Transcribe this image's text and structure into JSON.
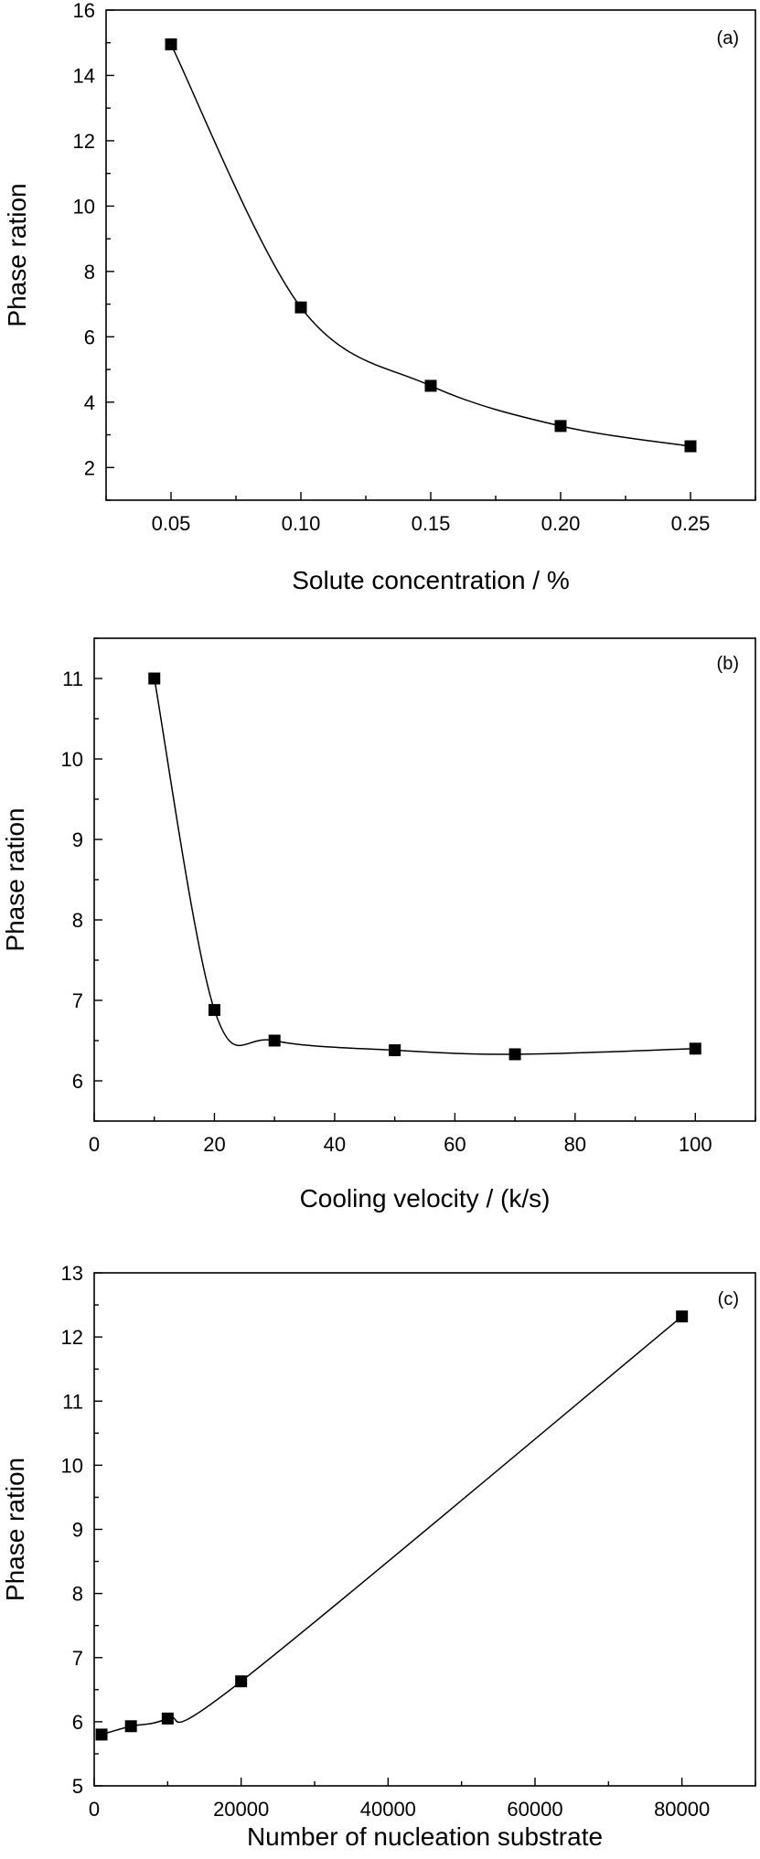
{
  "chart_data": [
    {
      "type": "line",
      "panel_label": "(a)",
      "xlabel": "Solute concentration / %",
      "ylabel": "Phase ration",
      "xlim": [
        0.025,
        0.275
      ],
      "ylim": [
        1,
        16
      ],
      "xticks": [
        "0.05",
        "0.10",
        "0.15",
        "0.20",
        "0.25"
      ],
      "yticks": [
        "2",
        "4",
        "6",
        "8",
        "10",
        "12",
        "14",
        "16"
      ],
      "series": [
        {
          "x": [
            0.05,
            0.1,
            0.15,
            0.2,
            0.25
          ],
          "y": [
            14.95,
            6.9,
            4.5,
            3.27,
            2.65
          ]
        }
      ],
      "marker": "square",
      "grid": false
    },
    {
      "type": "line",
      "panel_label": "(b)",
      "xlabel": "Cooling velocity / (k/s)",
      "ylabel": "Phase ration",
      "xlim": [
        0,
        110
      ],
      "ylim": [
        5.5,
        11.5
      ],
      "xticks": [
        "0",
        "20",
        "40",
        "60",
        "80",
        "100"
      ],
      "yticks": [
        "6",
        "7",
        "8",
        "9",
        "10",
        "11"
      ],
      "series": [
        {
          "x": [
            10,
            20,
            30,
            50,
            70,
            100
          ],
          "y": [
            11.0,
            6.88,
            6.5,
            6.38,
            6.33,
            6.4
          ]
        }
      ],
      "marker": "square",
      "grid": false
    },
    {
      "type": "line",
      "panel_label": "(c)",
      "xlabel": "Number of nucleation substrate",
      "ylabel": "Phase ration",
      "xlim": [
        0,
        90000
      ],
      "ylim": [
        5,
        13
      ],
      "xticks": [
        "0",
        "20000",
        "40000",
        "60000",
        "80000"
      ],
      "yticks": [
        "5",
        "6",
        "7",
        "8",
        "9",
        "10",
        "11",
        "12",
        "13"
      ],
      "series": [
        {
          "x": [
            1000,
            5000,
            10000,
            20000,
            80000
          ],
          "y": [
            5.8,
            5.93,
            6.05,
            6.63,
            12.32
          ]
        }
      ],
      "marker": "square",
      "grid": false
    }
  ]
}
